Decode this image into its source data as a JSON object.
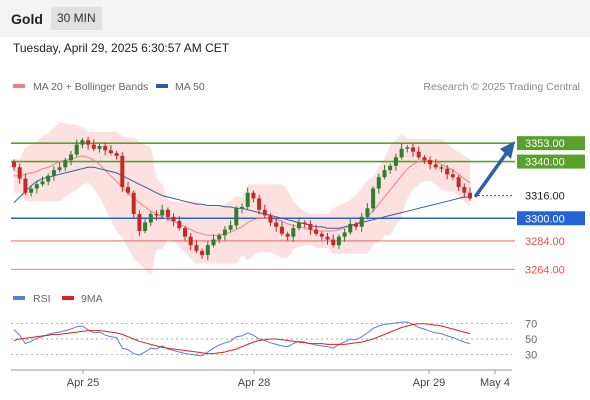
{
  "header": {
    "title": "Gold",
    "timeframe": "30 MIN"
  },
  "datetime": "Tuesday, April 29, 2025 6:30:57 AM CET",
  "legend": {
    "ma20_bb": {
      "label": "MA 20 + Bollinger Bands",
      "color": "#f08080"
    },
    "ma50": {
      "label": "MA 50",
      "color": "#2f5d9e"
    },
    "credit": "Research © 2025 Trading Central"
  },
  "rsi_legend": {
    "rsi": {
      "label": "RSI",
      "color": "#5b7fd6"
    },
    "ma9": {
      "label": "9MA",
      "color": "#e02020"
    }
  },
  "colors": {
    "up": "#2e7d32",
    "down": "#c62828",
    "resistance": "#5aa02c",
    "pivot": "#2563d9",
    "support": "#e05050",
    "band": "#fde0e0",
    "arrow": "#2f5fa8"
  },
  "chart_data": [
    {
      "type": "candlestick",
      "title": "Gold",
      "ylim": [
        3255,
        3375
      ],
      "x_ticks": [
        "Apr 25",
        "Apr 28",
        "Apr 29",
        "May 4"
      ],
      "current_price": 3316.0,
      "levels": [
        {
          "value": 3353.0,
          "label": "3353.00",
          "kind": "resistance"
        },
        {
          "value": 3340.0,
          "label": "3340.00",
          "kind": "resistance"
        },
        {
          "value": 3316.0,
          "label": "3316.00",
          "kind": "current"
        },
        {
          "value": 3300.0,
          "label": "3300.00",
          "kind": "pivot"
        },
        {
          "value": 3284.0,
          "label": "3284.00",
          "kind": "support"
        },
        {
          "value": 3264.0,
          "label": "3264.00",
          "kind": "support"
        }
      ],
      "close": [
        3336,
        3328,
        3318,
        3321,
        3324,
        3326,
        3330,
        3334,
        3336,
        3341,
        3345,
        3352,
        3355,
        3352,
        3349,
        3351,
        3348,
        3346,
        3344,
        3322,
        3318,
        3303,
        3291,
        3297,
        3303,
        3302,
        3306,
        3301,
        3298,
        3293,
        3287,
        3281,
        3277,
        3274,
        3281,
        3285,
        3288,
        3292,
        3295,
        3307,
        3308,
        3318,
        3314,
        3306,
        3302,
        3297,
        3294,
        3289,
        3287,
        3293,
        3297,
        3296,
        3292,
        3289,
        3287,
        3285,
        3281,
        3287,
        3290,
        3296,
        3294,
        3301,
        3307,
        3321,
        3329,
        3334,
        3337,
        3343,
        3349,
        3350,
        3347,
        3343,
        3341,
        3338,
        3336,
        3335,
        3331,
        3329,
        3322,
        3318,
        3314
      ],
      "ma20": [
        3330,
        3330,
        3331,
        3332,
        3333,
        3335,
        3336,
        3338,
        3340,
        3341,
        3342,
        3343,
        3344,
        3343,
        3341,
        3338,
        3334,
        3330,
        3326,
        3322,
        3318,
        3314,
        3311,
        3308,
        3305,
        3303,
        3301,
        3299,
        3298,
        3296,
        3294,
        3292,
        3290,
        3289,
        3288,
        3288,
        3288,
        3289,
        3290,
        3292,
        3294,
        3297,
        3299,
        3300,
        3300,
        3300,
        3299,
        3298,
        3296,
        3295,
        3294,
        3293,
        3292,
        3291,
        3291,
        3291,
        3291,
        3292,
        3293,
        3294,
        3296,
        3298,
        3301,
        3305,
        3310,
        3315,
        3320,
        3325,
        3330,
        3335,
        3338,
        3340,
        3341,
        3341,
        3340,
        3338,
        3336,
        3334,
        3331,
        3328,
        3325
      ],
      "ma50": [
        3311,
        3315,
        3319,
        3323,
        3326,
        3328,
        3329,
        3330,
        3331,
        3332,
        3333,
        3334,
        3335,
        3336,
        3336,
        3335,
        3334,
        3333,
        3332,
        3330,
        3328,
        3326,
        3324,
        3322,
        3320,
        3318,
        3316,
        3315,
        3314,
        3313,
        3312,
        3311,
        3310,
        3310,
        3309,
        3309,
        3309,
        3308,
        3308,
        3307,
        3307,
        3306,
        3305,
        3304,
        3303,
        3302,
        3301,
        3300,
        3299,
        3298,
        3297,
        3296,
        3295,
        3294,
        3294,
        3293,
        3293,
        3293,
        3294,
        3295,
        3296,
        3297,
        3298,
        3299,
        3300,
        3301,
        3302,
        3303,
        3304,
        3305,
        3306,
        3307,
        3308,
        3309,
        3310,
        3311,
        3312,
        3313,
        3314,
        3315,
        3315
      ]
    },
    {
      "type": "line",
      "title": "RSI",
      "ylim": [
        20,
        80
      ],
      "y_ticks": [
        70,
        50,
        30
      ],
      "series": [
        {
          "name": "RSI",
          "values": [
            62,
            55,
            44,
            47,
            51,
            53,
            56,
            58,
            59,
            61,
            63,
            66,
            67,
            62,
            58,
            59,
            55,
            53,
            52,
            38,
            36,
            31,
            29,
            33,
            38,
            37,
            41,
            37,
            35,
            33,
            31,
            30,
            29,
            28,
            33,
            38,
            42,
            45,
            47,
            53,
            54,
            58,
            55,
            50,
            48,
            45,
            43,
            41,
            40,
            44,
            47,
            46,
            44,
            42,
            41,
            40,
            38,
            43,
            46,
            50,
            49,
            53,
            58,
            64,
            67,
            69,
            70,
            71,
            72,
            72,
            69,
            65,
            63,
            60,
            58,
            57,
            54,
            52,
            49,
            46,
            44
          ]
        },
        {
          "name": "9MA",
          "values": [
            48,
            50,
            51,
            52,
            53,
            54,
            55,
            56,
            56,
            57,
            58,
            59,
            60,
            61,
            61,
            61,
            60,
            59,
            58,
            56,
            53,
            50,
            47,
            45,
            43,
            41,
            39,
            38,
            37,
            36,
            35,
            34,
            33,
            32,
            31,
            31,
            32,
            33,
            35,
            37,
            40,
            43,
            46,
            48,
            49,
            50,
            50,
            49,
            48,
            47,
            46,
            45,
            44,
            44,
            44,
            43,
            43,
            43,
            43,
            44,
            45,
            46,
            48,
            50,
            53,
            56,
            59,
            62,
            65,
            67,
            69,
            70,
            70,
            69,
            68,
            67,
            65,
            63,
            61,
            59,
            57
          ]
        }
      ]
    }
  ]
}
